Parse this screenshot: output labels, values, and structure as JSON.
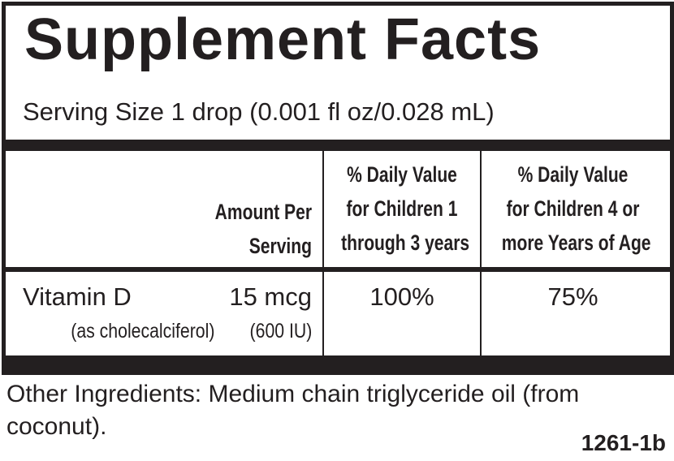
{
  "title": "Supplement Facts",
  "serving_size": "Serving Size 1 drop (0.001 fl oz/0.028 mL)",
  "table": {
    "headers": {
      "amount": [
        "Amount Per",
        "Serving"
      ],
      "dv_children_1_3": [
        "% Daily Value",
        "for Children 1",
        "through 3 years"
      ],
      "dv_children_4_plus": [
        "% Daily Value",
        "for Children 4 or",
        "more Years of Age"
      ]
    },
    "rows": [
      {
        "nutrient": "Vitamin D",
        "source": "(as cholecalciferol)",
        "amount": "15 mcg",
        "amount_iu": "(600 IU)",
        "dv_children_1_3": "100%",
        "dv_children_4_plus": "75%"
      }
    ]
  },
  "other_ingredients": "Other Ingredients: Medium chain triglyceride oil (from coconut).",
  "code": "1261-1b"
}
